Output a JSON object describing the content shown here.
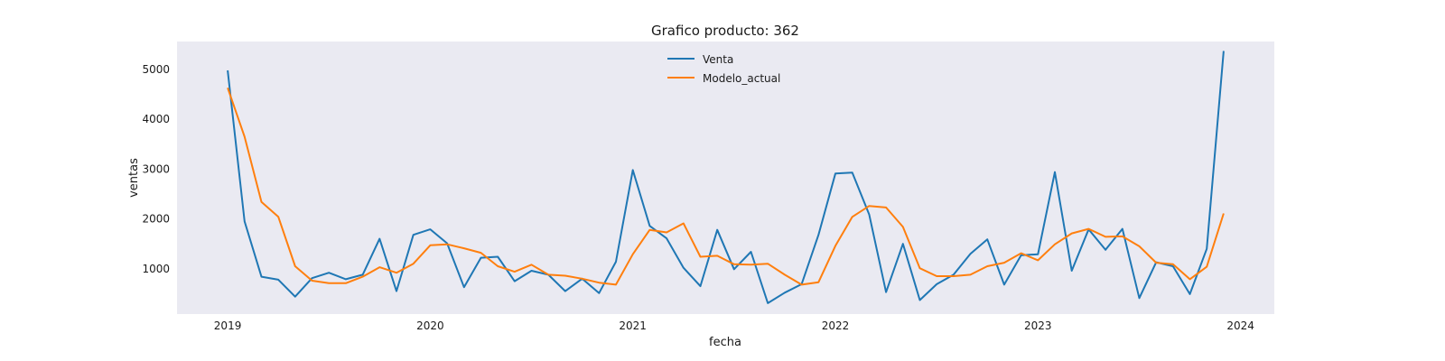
{
  "chart_data": {
    "type": "line",
    "title": "Grafico producto: 362",
    "xlabel": "fecha",
    "ylabel": "ventas",
    "x": [
      "2019-01",
      "2019-02",
      "2019-03",
      "2019-04",
      "2019-05",
      "2019-06",
      "2019-07",
      "2019-08",
      "2019-09",
      "2019-10",
      "2019-11",
      "2019-12",
      "2020-01",
      "2020-02",
      "2020-03",
      "2020-04",
      "2020-05",
      "2020-06",
      "2020-07",
      "2020-08",
      "2020-09",
      "2020-10",
      "2020-11",
      "2020-12",
      "2021-01",
      "2021-02",
      "2021-03",
      "2021-04",
      "2021-05",
      "2021-06",
      "2021-07",
      "2021-08",
      "2021-09",
      "2021-10",
      "2021-11",
      "2021-12",
      "2022-01",
      "2022-02",
      "2022-03",
      "2022-04",
      "2022-05",
      "2022-06",
      "2022-07",
      "2022-08",
      "2022-09",
      "2022-10",
      "2022-11",
      "2022-12",
      "2023-01",
      "2023-02",
      "2023-03",
      "2023-04",
      "2023-05",
      "2023-06",
      "2023-07",
      "2023-08",
      "2023-09",
      "2023-10",
      "2023-11",
      "2023-12"
    ],
    "xticks": [
      "2019",
      "2020",
      "2021",
      "2022",
      "2023",
      "2024"
    ],
    "yticks": [
      1000,
      2000,
      3000,
      4000,
      5000
    ],
    "xlim": [
      "2018-10",
      "2024-03"
    ],
    "ylim": [
      90,
      5560
    ],
    "grid": false,
    "legend_position": "top-center",
    "series": [
      {
        "name": "Venta",
        "color": "#1f77b4",
        "values": [
          4980,
          1950,
          840,
          780,
          440,
          810,
          920,
          790,
          880,
          1600,
          550,
          1680,
          1790,
          1510,
          630,
          1220,
          1240,
          750,
          960,
          880,
          550,
          800,
          510,
          1140,
          2980,
          1860,
          1610,
          1020,
          650,
          1780,
          990,
          1340,
          310,
          520,
          690,
          1680,
          2910,
          2930,
          2090,
          530,
          1500,
          370,
          690,
          880,
          1300,
          1590,
          680,
          1270,
          1290,
          2940,
          960,
          1790,
          1380,
          1800,
          410,
          1130,
          1050,
          490,
          1400,
          5370
        ]
      },
      {
        "name": "Modelo_actual",
        "color": "#ff7f0e",
        "values": [
          4630,
          3650,
          2340,
          2040,
          1050,
          760,
          710,
          710,
          840,
          1030,
          920,
          1100,
          1470,
          1490,
          1410,
          1320,
          1050,
          940,
          1080,
          880,
          860,
          800,
          720,
          680,
          1290,
          1780,
          1730,
          1910,
          1240,
          1260,
          1090,
          1080,
          1100,
          880,
          680,
          730,
          1460,
          2040,
          2260,
          2230,
          1840,
          1010,
          850,
          850,
          880,
          1050,
          1120,
          1310,
          1170,
          1490,
          1710,
          1800,
          1640,
          1650,
          1450,
          1120,
          1090,
          790,
          1040,
          2110
        ]
      }
    ]
  }
}
